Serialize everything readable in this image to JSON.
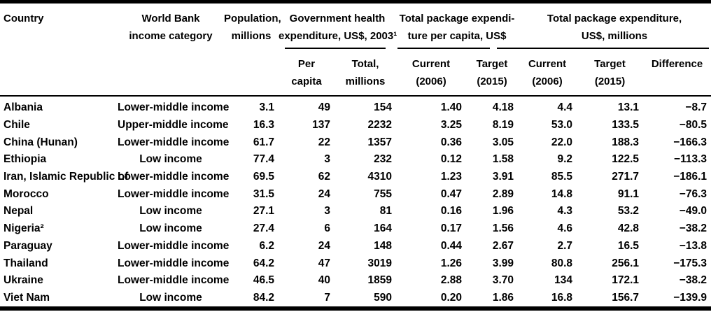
{
  "table": {
    "colors": {
      "text": "#000000",
      "background": "#ffffff",
      "rule": "#000000"
    },
    "columns": {
      "country": "Country",
      "income": {
        "line1": "World Bank",
        "line2": "income category"
      },
      "population": {
        "line1": "Population,",
        "line2": "millions"
      },
      "group_gov": {
        "line1": "Government health",
        "line2": "expenditure, US$, 2003¹"
      },
      "group_pkg_pc": {
        "line1": "Total package expendi-",
        "line2": "ture per capita, US$"
      },
      "group_pkg_m": {
        "line1": "Total package expenditure,",
        "line2": "US$, millions"
      },
      "sub_per_capita": {
        "line1": "Per",
        "line2": "capita"
      },
      "sub_total_millions": {
        "line1": "Total,",
        "line2": "millions"
      },
      "sub_pc_current": {
        "line1": "Current",
        "line2": "(2006)"
      },
      "sub_pc_target": {
        "line1": "Target",
        "line2": "(2015)"
      },
      "sub_m_current": {
        "line1": "Current",
        "line2": "(2006)"
      },
      "sub_m_target": {
        "line1": "Target",
        "line2": "(2015)"
      },
      "sub_difference": "Difference"
    },
    "rows": [
      {
        "country": "Albania",
        "income": "Lower-middle income",
        "population": "3.1",
        "gov_per_capita": "49",
        "gov_total": "154",
        "pc_current": "1.40",
        "pc_target": "4.18",
        "m_current": "4.4",
        "m_target": "13.1",
        "difference": "−8.7"
      },
      {
        "country": "Chile",
        "income": "Upper-middle income",
        "population": "16.3",
        "gov_per_capita": "137",
        "gov_total": "2232",
        "pc_current": "3.25",
        "pc_target": "8.19",
        "m_current": "53.0",
        "m_target": "133.5",
        "difference": "−80.5"
      },
      {
        "country": "China (Hunan)",
        "income": "Lower-middle income",
        "population": "61.7",
        "gov_per_capita": "22",
        "gov_total": "1357",
        "pc_current": "0.36",
        "pc_target": "3.05",
        "m_current": "22.0",
        "m_target": "188.3",
        "difference": "−166.3"
      },
      {
        "country": "Ethiopia",
        "income": "Low income",
        "population": "77.4",
        "gov_per_capita": "3",
        "gov_total": "232",
        "pc_current": "0.12",
        "pc_target": "1.58",
        "m_current": "9.2",
        "m_target": "122.5",
        "difference": "−113.3"
      },
      {
        "country": "Iran, Islamic Republic of",
        "income": "Lower-middle income",
        "population": "69.5",
        "gov_per_capita": "62",
        "gov_total": "4310",
        "pc_current": "1.23",
        "pc_target": "3.91",
        "m_current": "85.5",
        "m_target": "271.7",
        "difference": "−186.1"
      },
      {
        "country": "Morocco",
        "income": "Lower-middle income",
        "population": "31.5",
        "gov_per_capita": "24",
        "gov_total": "755",
        "pc_current": "0.47",
        "pc_target": "2.89",
        "m_current": "14.8",
        "m_target": "91.1",
        "difference": "−76.3"
      },
      {
        "country": "Nepal",
        "income": "Low income",
        "population": "27.1",
        "gov_per_capita": "3",
        "gov_total": "81",
        "pc_current": "0.16",
        "pc_target": "1.96",
        "m_current": "4.3",
        "m_target": "53.2",
        "difference": "−49.0"
      },
      {
        "country": "Nigeria²",
        "income": "Low income",
        "population": "27.4",
        "gov_per_capita": "6",
        "gov_total": "164",
        "pc_current": "0.17",
        "pc_target": "1.56",
        "m_current": "4.6",
        "m_target": "42.8",
        "difference": "−38.2"
      },
      {
        "country": "Paraguay",
        "income": "Lower-middle income",
        "population": "6.2",
        "gov_per_capita": "24",
        "gov_total": "148",
        "pc_current": "0.44",
        "pc_target": "2.67",
        "m_current": "2.7",
        "m_target": "16.5",
        "difference": "−13.8"
      },
      {
        "country": "Thailand",
        "income": "Lower-middle income",
        "population": "64.2",
        "gov_per_capita": "47",
        "gov_total": "3019",
        "pc_current": "1.26",
        "pc_target": "3.99",
        "m_current": "80.8",
        "m_target": "256.1",
        "difference": "−175.3"
      },
      {
        "country": "Ukraine",
        "income": "Lower-middle income",
        "population": "46.5",
        "gov_per_capita": "40",
        "gov_total": "1859",
        "pc_current": "2.88",
        "pc_target": "3.70",
        "m_current": "134",
        "m_target": "172.1",
        "difference": "−38.2"
      },
      {
        "country": "Viet Nam",
        "income": "Low income",
        "population": "84.2",
        "gov_per_capita": "7",
        "gov_total": "590",
        "pc_current": "0.20",
        "pc_target": "1.86",
        "m_current": "16.8",
        "m_target": "156.7",
        "difference": "−139.9"
      }
    ]
  }
}
